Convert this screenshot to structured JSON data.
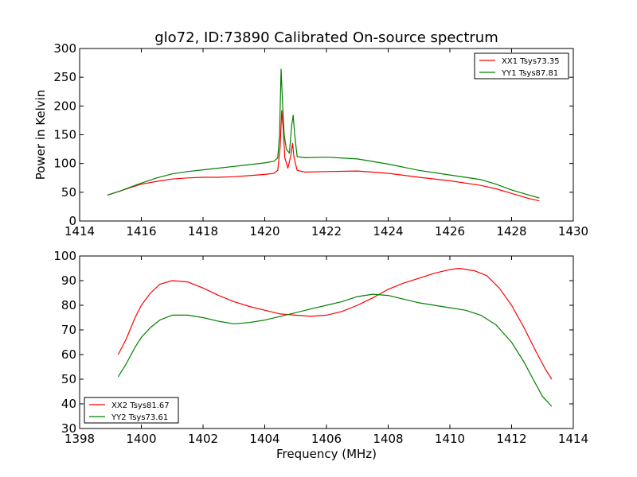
{
  "title": "glo72, ID:73890 Calibrated On-source spectrum",
  "colors": {
    "red": "#ff0000",
    "green": "#008000"
  },
  "chart_data": [
    {
      "type": "line",
      "id": "top",
      "xlim": [
        1414,
        1430
      ],
      "ylim": [
        0,
        300
      ],
      "xticks": [
        "1414",
        "1416",
        "1418",
        "1420",
        "1422",
        "1424",
        "1426",
        "1428",
        "1430"
      ],
      "yticks": [
        "0",
        "50",
        "100",
        "150",
        "200",
        "250",
        "300"
      ],
      "xlabel": "",
      "ylabel": "Power in Kelvin",
      "legend_position": "top-right",
      "grid": false,
      "series": [
        {
          "name": "XX1 Tsys73.35",
          "color": "#ff0000",
          "points": [
            [
              1414.9,
              45
            ],
            [
              1415.3,
              52
            ],
            [
              1415.7,
              59
            ],
            [
              1416.0,
              64
            ],
            [
              1416.5,
              69
            ],
            [
              1417.0,
              73
            ],
            [
              1417.5,
              75
            ],
            [
              1418.0,
              76
            ],
            [
              1418.5,
              76
            ],
            [
              1419.0,
              77
            ],
            [
              1419.5,
              79
            ],
            [
              1420.0,
              81
            ],
            [
              1420.3,
              83
            ],
            [
              1420.42,
              88
            ],
            [
              1420.5,
              130
            ],
            [
              1420.55,
              192
            ],
            [
              1420.6,
              160
            ],
            [
              1420.65,
              110
            ],
            [
              1420.75,
              92
            ],
            [
              1420.85,
              115
            ],
            [
              1420.9,
              135
            ],
            [
              1420.95,
              110
            ],
            [
              1421.05,
              88
            ],
            [
              1421.3,
              85
            ],
            [
              1422.0,
              86
            ],
            [
              1423.0,
              87
            ],
            [
              1424.0,
              83
            ],
            [
              1425.0,
              76
            ],
            [
              1426.0,
              70
            ],
            [
              1427.0,
              62
            ],
            [
              1427.5,
              56
            ],
            [
              1428.0,
              48
            ],
            [
              1428.5,
              40
            ],
            [
              1428.9,
              35
            ]
          ]
        },
        {
          "name": "YY1 Tsys87.81",
          "color": "#008000",
          "points": [
            [
              1414.9,
              45
            ],
            [
              1415.3,
              52
            ],
            [
              1415.7,
              60
            ],
            [
              1416.0,
              66
            ],
            [
              1416.5,
              75
            ],
            [
              1417.0,
              82
            ],
            [
              1417.5,
              86
            ],
            [
              1418.0,
              89
            ],
            [
              1418.5,
              92
            ],
            [
              1419.0,
              95
            ],
            [
              1419.5,
              98
            ],
            [
              1420.0,
              101
            ],
            [
              1420.3,
              104
            ],
            [
              1420.42,
              110
            ],
            [
              1420.48,
              150
            ],
            [
              1420.53,
              264
            ],
            [
              1420.58,
              200
            ],
            [
              1420.63,
              150
            ],
            [
              1420.7,
              125
            ],
            [
              1420.8,
              118
            ],
            [
              1420.87,
              165
            ],
            [
              1420.92,
              184
            ],
            [
              1420.97,
              150
            ],
            [
              1421.05,
              112
            ],
            [
              1421.3,
              110
            ],
            [
              1422.0,
              111
            ],
            [
              1423.0,
              108
            ],
            [
              1424.0,
              99
            ],
            [
              1425.0,
              88
            ],
            [
              1426.0,
              80
            ],
            [
              1427.0,
              72
            ],
            [
              1427.5,
              64
            ],
            [
              1428.0,
              54
            ],
            [
              1428.5,
              46
            ],
            [
              1428.9,
              40
            ]
          ]
        }
      ]
    },
    {
      "type": "line",
      "id": "bottom",
      "xlim": [
        1398,
        1414
      ],
      "ylim": [
        30,
        100
      ],
      "xticks": [
        "1398",
        "1400",
        "1402",
        "1404",
        "1406",
        "1408",
        "1410",
        "1412",
        "1414"
      ],
      "yticks": [
        "30",
        "40",
        "50",
        "60",
        "70",
        "80",
        "90",
        "100"
      ],
      "xlabel": "Frequency (MHz)",
      "ylabel": "",
      "legend_position": "bottom-left",
      "grid": false,
      "series": [
        {
          "name": "XX2 Tsys81.67",
          "color": "#ff0000",
          "points": [
            [
              1399.25,
              60
            ],
            [
              1399.5,
              66
            ],
            [
              1399.8,
              75
            ],
            [
              1400.0,
              80
            ],
            [
              1400.3,
              85
            ],
            [
              1400.6,
              88.5
            ],
            [
              1401.0,
              90
            ],
            [
              1401.5,
              89.5
            ],
            [
              1402.0,
              87
            ],
            [
              1402.5,
              84
            ],
            [
              1403.0,
              81.5
            ],
            [
              1403.5,
              79.5
            ],
            [
              1404.0,
              78
            ],
            [
              1404.5,
              76.5
            ],
            [
              1405.0,
              76
            ],
            [
              1405.5,
              75.5
            ],
            [
              1406.0,
              76
            ],
            [
              1406.5,
              77.5
            ],
            [
              1407.0,
              80
            ],
            [
              1407.5,
              83
            ],
            [
              1408.0,
              86.5
            ],
            [
              1408.5,
              89
            ],
            [
              1409.0,
              91
            ],
            [
              1409.5,
              93
            ],
            [
              1410.0,
              94.5
            ],
            [
              1410.3,
              95
            ],
            [
              1410.8,
              94
            ],
            [
              1411.2,
              92
            ],
            [
              1411.6,
              87
            ],
            [
              1412.0,
              80
            ],
            [
              1412.4,
              71
            ],
            [
              1412.8,
              61
            ],
            [
              1413.1,
              54
            ],
            [
              1413.3,
              50
            ]
          ]
        },
        {
          "name": "YY2 Tsys73.61",
          "color": "#008000",
          "points": [
            [
              1399.25,
              51
            ],
            [
              1399.5,
              56
            ],
            [
              1399.8,
              63
            ],
            [
              1400.0,
              67
            ],
            [
              1400.3,
              71
            ],
            [
              1400.6,
              74
            ],
            [
              1401.0,
              76
            ],
            [
              1401.5,
              76
            ],
            [
              1402.0,
              75
            ],
            [
              1402.5,
              73.5
            ],
            [
              1403.0,
              72.5
            ],
            [
              1403.5,
              73
            ],
            [
              1404.0,
              74
            ],
            [
              1404.5,
              75.5
            ],
            [
              1405.0,
              77
            ],
            [
              1405.5,
              78.5
            ],
            [
              1406.0,
              80
            ],
            [
              1406.5,
              81.5
            ],
            [
              1407.0,
              83.5
            ],
            [
              1407.5,
              84.5
            ],
            [
              1408.0,
              84
            ],
            [
              1408.5,
              82.5
            ],
            [
              1409.0,
              81
            ],
            [
              1409.5,
              80
            ],
            [
              1410.0,
              79
            ],
            [
              1410.5,
              78
            ],
            [
              1411.0,
              76
            ],
            [
              1411.5,
              72
            ],
            [
              1412.0,
              65
            ],
            [
              1412.4,
              57
            ],
            [
              1412.7,
              50
            ],
            [
              1413.0,
              43
            ],
            [
              1413.3,
              39
            ]
          ]
        }
      ]
    }
  ]
}
